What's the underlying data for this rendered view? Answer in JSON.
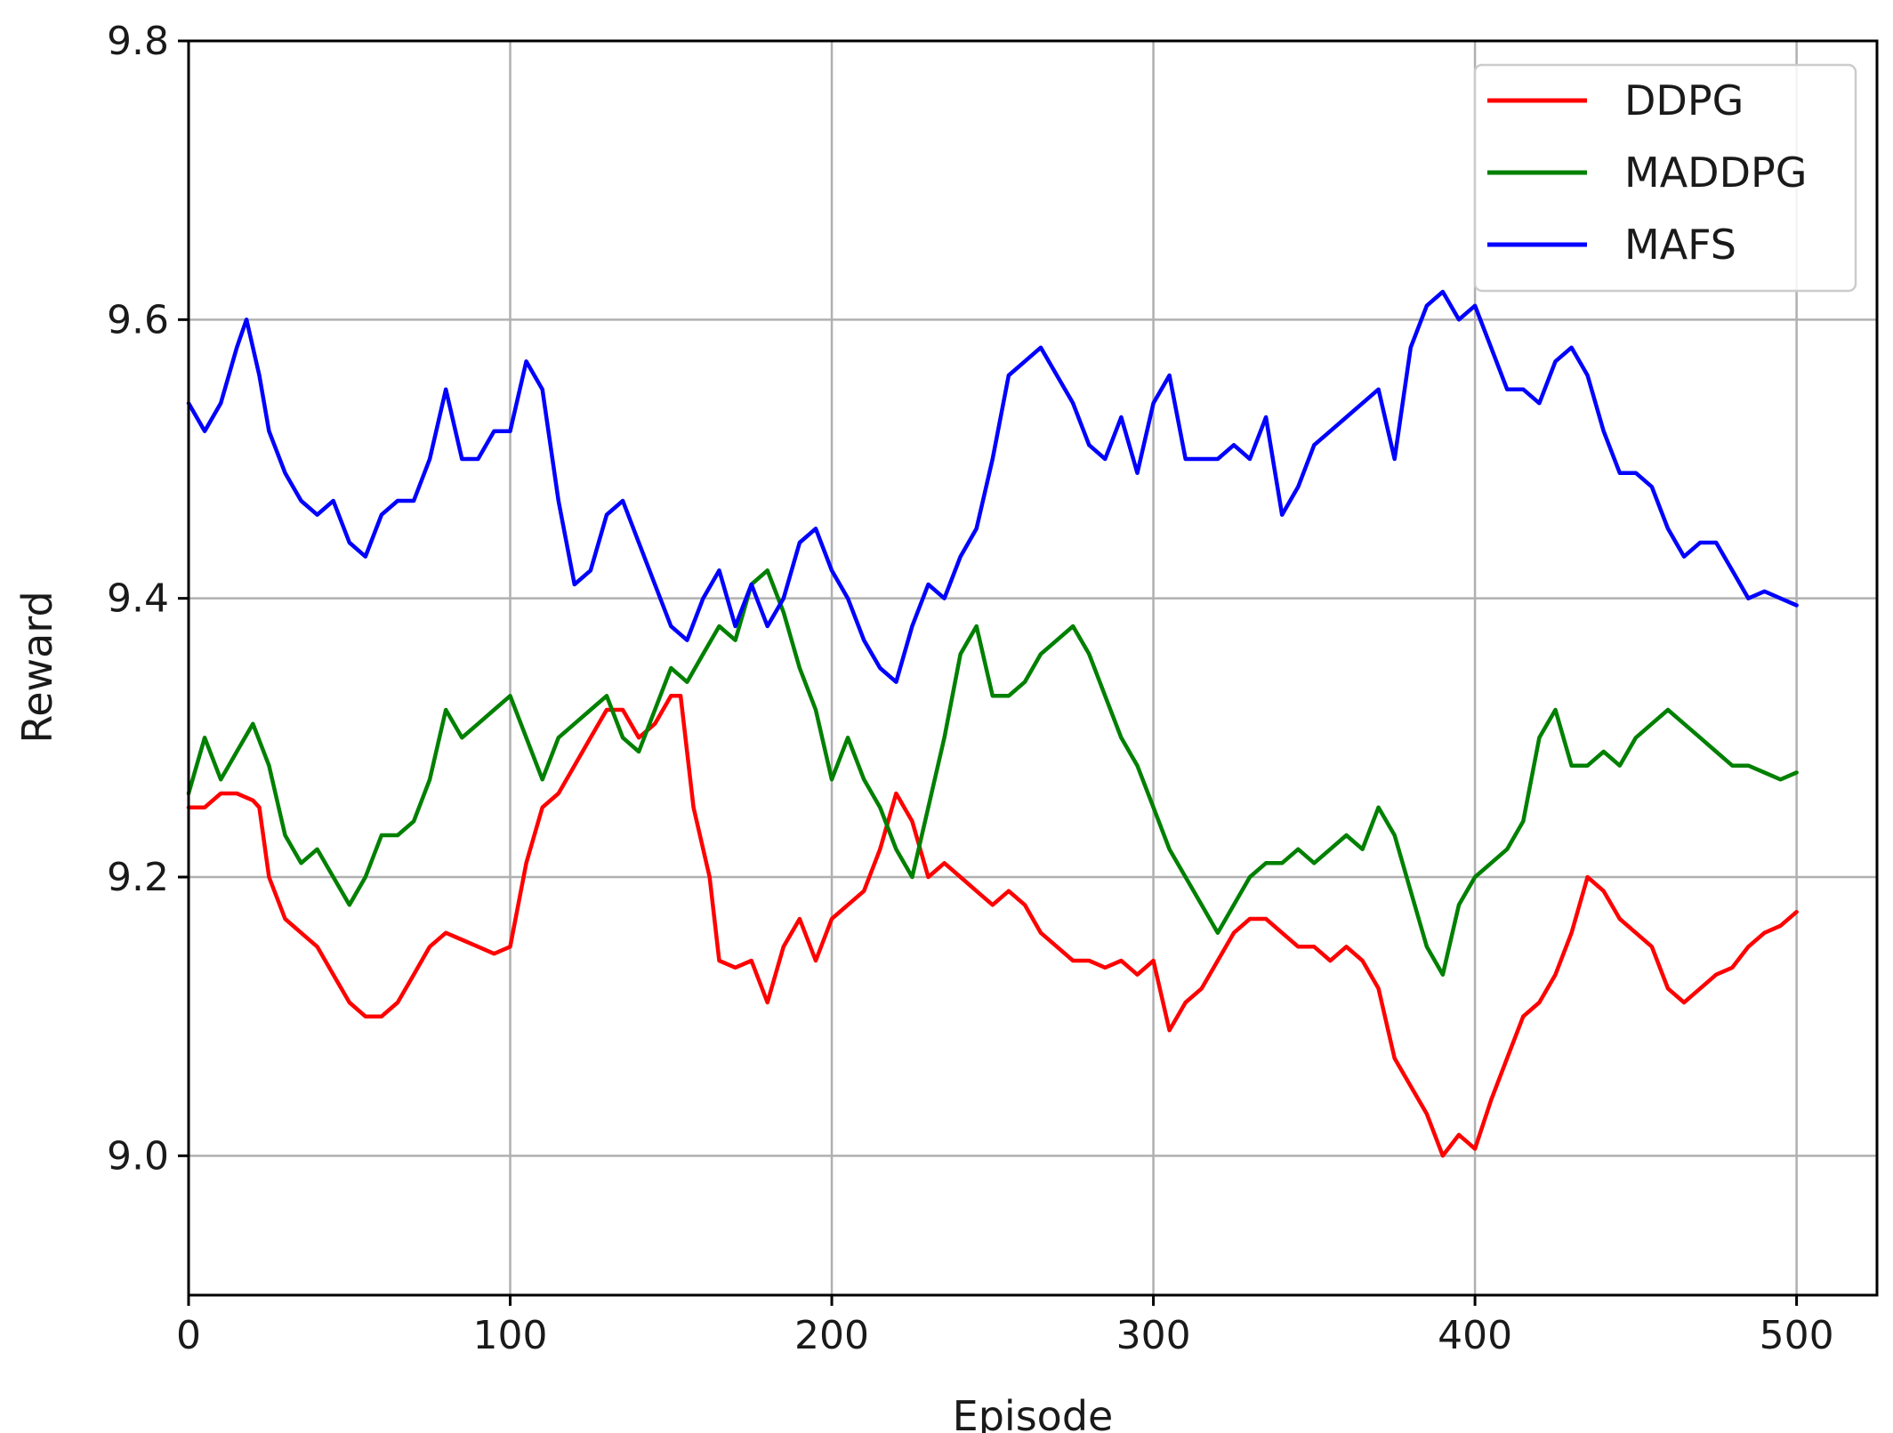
{
  "chart_data": {
    "type": "line",
    "xlabel": "Episode",
    "ylabel": "Reward",
    "xlim": [
      0,
      525
    ],
    "ylim": [
      8.9,
      9.8
    ],
    "xticks": [
      0,
      100,
      200,
      300,
      400,
      500
    ],
    "yticks": [
      9.0,
      9.2,
      9.4,
      9.6,
      9.8
    ],
    "xtick_labels": [
      "0",
      "100",
      "200",
      "300",
      "400",
      "500"
    ],
    "ytick_labels": [
      "9.0",
      "9.2",
      "9.4",
      "9.6",
      "9.8"
    ],
    "grid": true,
    "legend_position": "top-right",
    "series": [
      {
        "name": "DDPG",
        "color": "#ff0000",
        "points": [
          [
            0,
            9.25
          ],
          [
            5,
            9.25
          ],
          [
            10,
            9.26
          ],
          [
            15,
            9.26
          ],
          [
            20,
            9.255
          ],
          [
            22,
            9.25
          ],
          [
            25,
            9.2
          ],
          [
            30,
            9.17
          ],
          [
            35,
            9.16
          ],
          [
            40,
            9.15
          ],
          [
            45,
            9.13
          ],
          [
            50,
            9.11
          ],
          [
            55,
            9.1
          ],
          [
            60,
            9.1
          ],
          [
            65,
            9.11
          ],
          [
            70,
            9.13
          ],
          [
            75,
            9.15
          ],
          [
            80,
            9.16
          ],
          [
            85,
            9.155
          ],
          [
            90,
            9.15
          ],
          [
            95,
            9.145
          ],
          [
            100,
            9.15
          ],
          [
            105,
            9.21
          ],
          [
            110,
            9.25
          ],
          [
            115,
            9.26
          ],
          [
            120,
            9.28
          ],
          [
            125,
            9.3
          ],
          [
            130,
            9.32
          ],
          [
            135,
            9.32
          ],
          [
            140,
            9.3
          ],
          [
            145,
            9.31
          ],
          [
            150,
            9.33
          ],
          [
            153,
            9.33
          ],
          [
            157,
            9.25
          ],
          [
            162,
            9.2
          ],
          [
            165,
            9.14
          ],
          [
            170,
            9.135
          ],
          [
            175,
            9.14
          ],
          [
            180,
            9.11
          ],
          [
            185,
            9.15
          ],
          [
            190,
            9.17
          ],
          [
            195,
            9.14
          ],
          [
            200,
            9.17
          ],
          [
            205,
            9.18
          ],
          [
            210,
            9.19
          ],
          [
            215,
            9.22
          ],
          [
            220,
            9.26
          ],
          [
            225,
            9.24
          ],
          [
            230,
            9.2
          ],
          [
            235,
            9.21
          ],
          [
            240,
            9.2
          ],
          [
            245,
            9.19
          ],
          [
            250,
            9.18
          ],
          [
            255,
            9.19
          ],
          [
            260,
            9.18
          ],
          [
            265,
            9.16
          ],
          [
            270,
            9.15
          ],
          [
            275,
            9.14
          ],
          [
            280,
            9.14
          ],
          [
            285,
            9.135
          ],
          [
            290,
            9.14
          ],
          [
            295,
            9.13
          ],
          [
            300,
            9.14
          ],
          [
            305,
            9.09
          ],
          [
            310,
            9.11
          ],
          [
            315,
            9.12
          ],
          [
            320,
            9.14
          ],
          [
            325,
            9.16
          ],
          [
            330,
            9.17
          ],
          [
            335,
            9.17
          ],
          [
            340,
            9.16
          ],
          [
            345,
            9.15
          ],
          [
            350,
            9.15
          ],
          [
            355,
            9.14
          ],
          [
            360,
            9.15
          ],
          [
            365,
            9.14
          ],
          [
            370,
            9.12
          ],
          [
            375,
            9.07
          ],
          [
            380,
            9.05
          ],
          [
            385,
            9.03
          ],
          [
            390,
            9.0
          ],
          [
            395,
            9.015
          ],
          [
            400,
            9.005
          ],
          [
            405,
            9.04
          ],
          [
            410,
            9.07
          ],
          [
            415,
            9.1
          ],
          [
            420,
            9.11
          ],
          [
            425,
            9.13
          ],
          [
            430,
            9.16
          ],
          [
            435,
            9.2
          ],
          [
            440,
            9.19
          ],
          [
            445,
            9.17
          ],
          [
            450,
            9.16
          ],
          [
            455,
            9.15
          ],
          [
            460,
            9.12
          ],
          [
            465,
            9.11
          ],
          [
            470,
            9.12
          ],
          [
            475,
            9.13
          ],
          [
            480,
            9.135
          ],
          [
            485,
            9.15
          ],
          [
            490,
            9.16
          ],
          [
            495,
            9.165
          ],
          [
            500,
            9.175
          ]
        ]
      },
      {
        "name": "MADDPG",
        "color": "#008000",
        "points": [
          [
            0,
            9.26
          ],
          [
            5,
            9.3
          ],
          [
            10,
            9.27
          ],
          [
            15,
            9.29
          ],
          [
            20,
            9.31
          ],
          [
            25,
            9.28
          ],
          [
            30,
            9.23
          ],
          [
            35,
            9.21
          ],
          [
            40,
            9.22
          ],
          [
            45,
            9.2
          ],
          [
            50,
            9.18
          ],
          [
            55,
            9.2
          ],
          [
            60,
            9.23
          ],
          [
            65,
            9.23
          ],
          [
            70,
            9.24
          ],
          [
            75,
            9.27
          ],
          [
            80,
            9.32
          ],
          [
            85,
            9.3
          ],
          [
            90,
            9.31
          ],
          [
            95,
            9.32
          ],
          [
            100,
            9.33
          ],
          [
            105,
            9.3
          ],
          [
            110,
            9.27
          ],
          [
            115,
            9.3
          ],
          [
            120,
            9.31
          ],
          [
            125,
            9.32
          ],
          [
            130,
            9.33
          ],
          [
            135,
            9.3
          ],
          [
            140,
            9.29
          ],
          [
            145,
            9.32
          ],
          [
            150,
            9.35
          ],
          [
            155,
            9.34
          ],
          [
            160,
            9.36
          ],
          [
            165,
            9.38
          ],
          [
            170,
            9.37
          ],
          [
            175,
            9.41
          ],
          [
            180,
            9.42
          ],
          [
            185,
            9.39
          ],
          [
            190,
            9.35
          ],
          [
            195,
            9.32
          ],
          [
            200,
            9.27
          ],
          [
            205,
            9.3
          ],
          [
            210,
            9.27
          ],
          [
            215,
            9.25
          ],
          [
            220,
            9.22
          ],
          [
            225,
            9.2
          ],
          [
            230,
            9.25
          ],
          [
            235,
            9.3
          ],
          [
            240,
            9.36
          ],
          [
            245,
            9.38
          ],
          [
            250,
            9.33
          ],
          [
            255,
            9.33
          ],
          [
            260,
            9.34
          ],
          [
            265,
            9.36
          ],
          [
            270,
            9.37
          ],
          [
            275,
            9.38
          ],
          [
            280,
            9.36
          ],
          [
            285,
            9.33
          ],
          [
            290,
            9.3
          ],
          [
            295,
            9.28
          ],
          [
            300,
            9.25
          ],
          [
            305,
            9.22
          ],
          [
            310,
            9.2
          ],
          [
            315,
            9.18
          ],
          [
            320,
            9.16
          ],
          [
            325,
            9.18
          ],
          [
            330,
            9.2
          ],
          [
            335,
            9.21
          ],
          [
            340,
            9.21
          ],
          [
            345,
            9.22
          ],
          [
            350,
            9.21
          ],
          [
            355,
            9.22
          ],
          [
            360,
            9.23
          ],
          [
            365,
            9.22
          ],
          [
            370,
            9.25
          ],
          [
            375,
            9.23
          ],
          [
            380,
            9.19
          ],
          [
            385,
            9.15
          ],
          [
            390,
            9.13
          ],
          [
            395,
            9.18
          ],
          [
            400,
            9.2
          ],
          [
            405,
            9.21
          ],
          [
            410,
            9.22
          ],
          [
            415,
            9.24
          ],
          [
            420,
            9.3
          ],
          [
            425,
            9.32
          ],
          [
            430,
            9.28
          ],
          [
            435,
            9.28
          ],
          [
            440,
            9.29
          ],
          [
            445,
            9.28
          ],
          [
            450,
            9.3
          ],
          [
            455,
            9.31
          ],
          [
            460,
            9.32
          ],
          [
            465,
            9.31
          ],
          [
            470,
            9.3
          ],
          [
            475,
            9.29
          ],
          [
            480,
            9.28
          ],
          [
            485,
            9.28
          ],
          [
            490,
            9.275
          ],
          [
            495,
            9.27
          ],
          [
            500,
            9.275
          ]
        ]
      },
      {
        "name": "MAFS",
        "color": "#0000ff",
        "points": [
          [
            0,
            9.54
          ],
          [
            5,
            9.52
          ],
          [
            10,
            9.54
          ],
          [
            15,
            9.58
          ],
          [
            18,
            9.6
          ],
          [
            22,
            9.56
          ],
          [
            25,
            9.52
          ],
          [
            30,
            9.49
          ],
          [
            35,
            9.47
          ],
          [
            40,
            9.46
          ],
          [
            45,
            9.47
          ],
          [
            50,
            9.44
          ],
          [
            55,
            9.43
          ],
          [
            60,
            9.46
          ],
          [
            65,
            9.47
          ],
          [
            70,
            9.47
          ],
          [
            75,
            9.5
          ],
          [
            80,
            9.55
          ],
          [
            85,
            9.5
          ],
          [
            90,
            9.5
          ],
          [
            95,
            9.52
          ],
          [
            100,
            9.52
          ],
          [
            105,
            9.57
          ],
          [
            110,
            9.55
          ],
          [
            115,
            9.47
          ],
          [
            120,
            9.41
          ],
          [
            125,
            9.42
          ],
          [
            130,
            9.46
          ],
          [
            135,
            9.47
          ],
          [
            140,
            9.44
          ],
          [
            145,
            9.41
          ],
          [
            150,
            9.38
          ],
          [
            155,
            9.37
          ],
          [
            160,
            9.4
          ],
          [
            165,
            9.42
          ],
          [
            170,
            9.38
          ],
          [
            175,
            9.41
          ],
          [
            180,
            9.38
          ],
          [
            185,
            9.4
          ],
          [
            190,
            9.44
          ],
          [
            195,
            9.45
          ],
          [
            200,
            9.42
          ],
          [
            205,
            9.4
          ],
          [
            210,
            9.37
          ],
          [
            215,
            9.35
          ],
          [
            220,
            9.34
          ],
          [
            225,
            9.38
          ],
          [
            230,
            9.41
          ],
          [
            235,
            9.4
          ],
          [
            240,
            9.43
          ],
          [
            245,
            9.45
          ],
          [
            250,
            9.5
          ],
          [
            255,
            9.56
          ],
          [
            260,
            9.57
          ],
          [
            265,
            9.58
          ],
          [
            270,
            9.56
          ],
          [
            275,
            9.54
          ],
          [
            280,
            9.51
          ],
          [
            285,
            9.5
          ],
          [
            290,
            9.53
          ],
          [
            295,
            9.49
          ],
          [
            300,
            9.54
          ],
          [
            305,
            9.56
          ],
          [
            310,
            9.5
          ],
          [
            315,
            9.5
          ],
          [
            320,
            9.5
          ],
          [
            325,
            9.51
          ],
          [
            330,
            9.5
          ],
          [
            335,
            9.53
          ],
          [
            340,
            9.46
          ],
          [
            345,
            9.48
          ],
          [
            350,
            9.51
          ],
          [
            355,
            9.52
          ],
          [
            360,
            9.53
          ],
          [
            365,
            9.54
          ],
          [
            370,
            9.55
          ],
          [
            375,
            9.5
          ],
          [
            380,
            9.58
          ],
          [
            385,
            9.61
          ],
          [
            390,
            9.62
          ],
          [
            395,
            9.6
          ],
          [
            400,
            9.61
          ],
          [
            405,
            9.58
          ],
          [
            410,
            9.55
          ],
          [
            415,
            9.55
          ],
          [
            420,
            9.54
          ],
          [
            425,
            9.57
          ],
          [
            430,
            9.58
          ],
          [
            435,
            9.56
          ],
          [
            440,
            9.52
          ],
          [
            445,
            9.49
          ],
          [
            450,
            9.49
          ],
          [
            455,
            9.48
          ],
          [
            460,
            9.45
          ],
          [
            465,
            9.43
          ],
          [
            470,
            9.44
          ],
          [
            475,
            9.44
          ],
          [
            480,
            9.42
          ],
          [
            485,
            9.4
          ],
          [
            490,
            9.405
          ],
          [
            495,
            9.4
          ],
          [
            500,
            9.395
          ]
        ]
      }
    ]
  }
}
